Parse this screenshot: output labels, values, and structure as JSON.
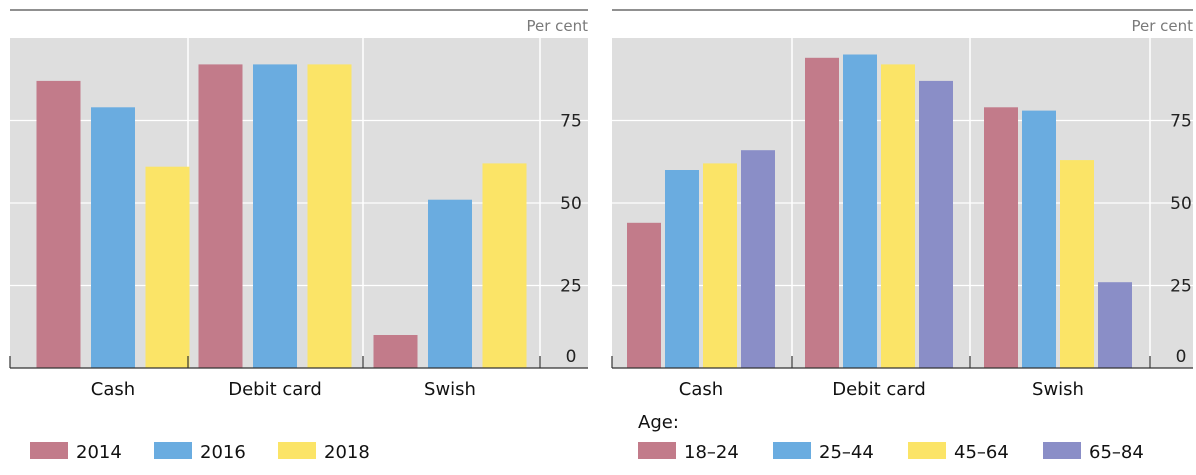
{
  "colors": {
    "plot_bg": "#dedede",
    "grid": "#ffffff",
    "axis": "#333333",
    "c2014": "#c27b8a",
    "c2016": "#6aace0",
    "c2018": "#fbe467",
    "age_18_24": "#c27b8a",
    "age_25_44": "#6aace0",
    "age_45_64": "#fbe467",
    "age_65_84": "#8a8ec7"
  },
  "chart_data": [
    {
      "type": "bar",
      "unit_label": "Per cent",
      "ylim": [
        0,
        100
      ],
      "yticks": [
        0,
        25,
        50,
        75
      ],
      "categories": [
        "Cash",
        "Debit card",
        "Swish"
      ],
      "legend_title": "",
      "series": [
        {
          "name": "2014",
          "color": "#c27b8a",
          "values": [
            87,
            92,
            10
          ]
        },
        {
          "name": "2016",
          "color": "#6aace0",
          "values": [
            79,
            92,
            51
          ]
        },
        {
          "name": "2018",
          "color": "#fbe467",
          "values": [
            61,
            92,
            62
          ]
        }
      ]
    },
    {
      "type": "bar",
      "unit_label": "Per cent",
      "ylim": [
        0,
        100
      ],
      "yticks": [
        0,
        25,
        50,
        75
      ],
      "categories": [
        "Cash",
        "Debit card",
        "Swish"
      ],
      "legend_title": "Age:",
      "series": [
        {
          "name": "18–24",
          "color": "#c27b8a",
          "values": [
            44,
            94,
            79
          ]
        },
        {
          "name": "25–44",
          "color": "#6aace0",
          "values": [
            60,
            95,
            78
          ]
        },
        {
          "name": "45–64",
          "color": "#fbe467",
          "values": [
            62,
            92,
            63
          ]
        },
        {
          "name": "65–84",
          "color": "#8a8ec7",
          "values": [
            66,
            87,
            26
          ]
        }
      ]
    }
  ]
}
